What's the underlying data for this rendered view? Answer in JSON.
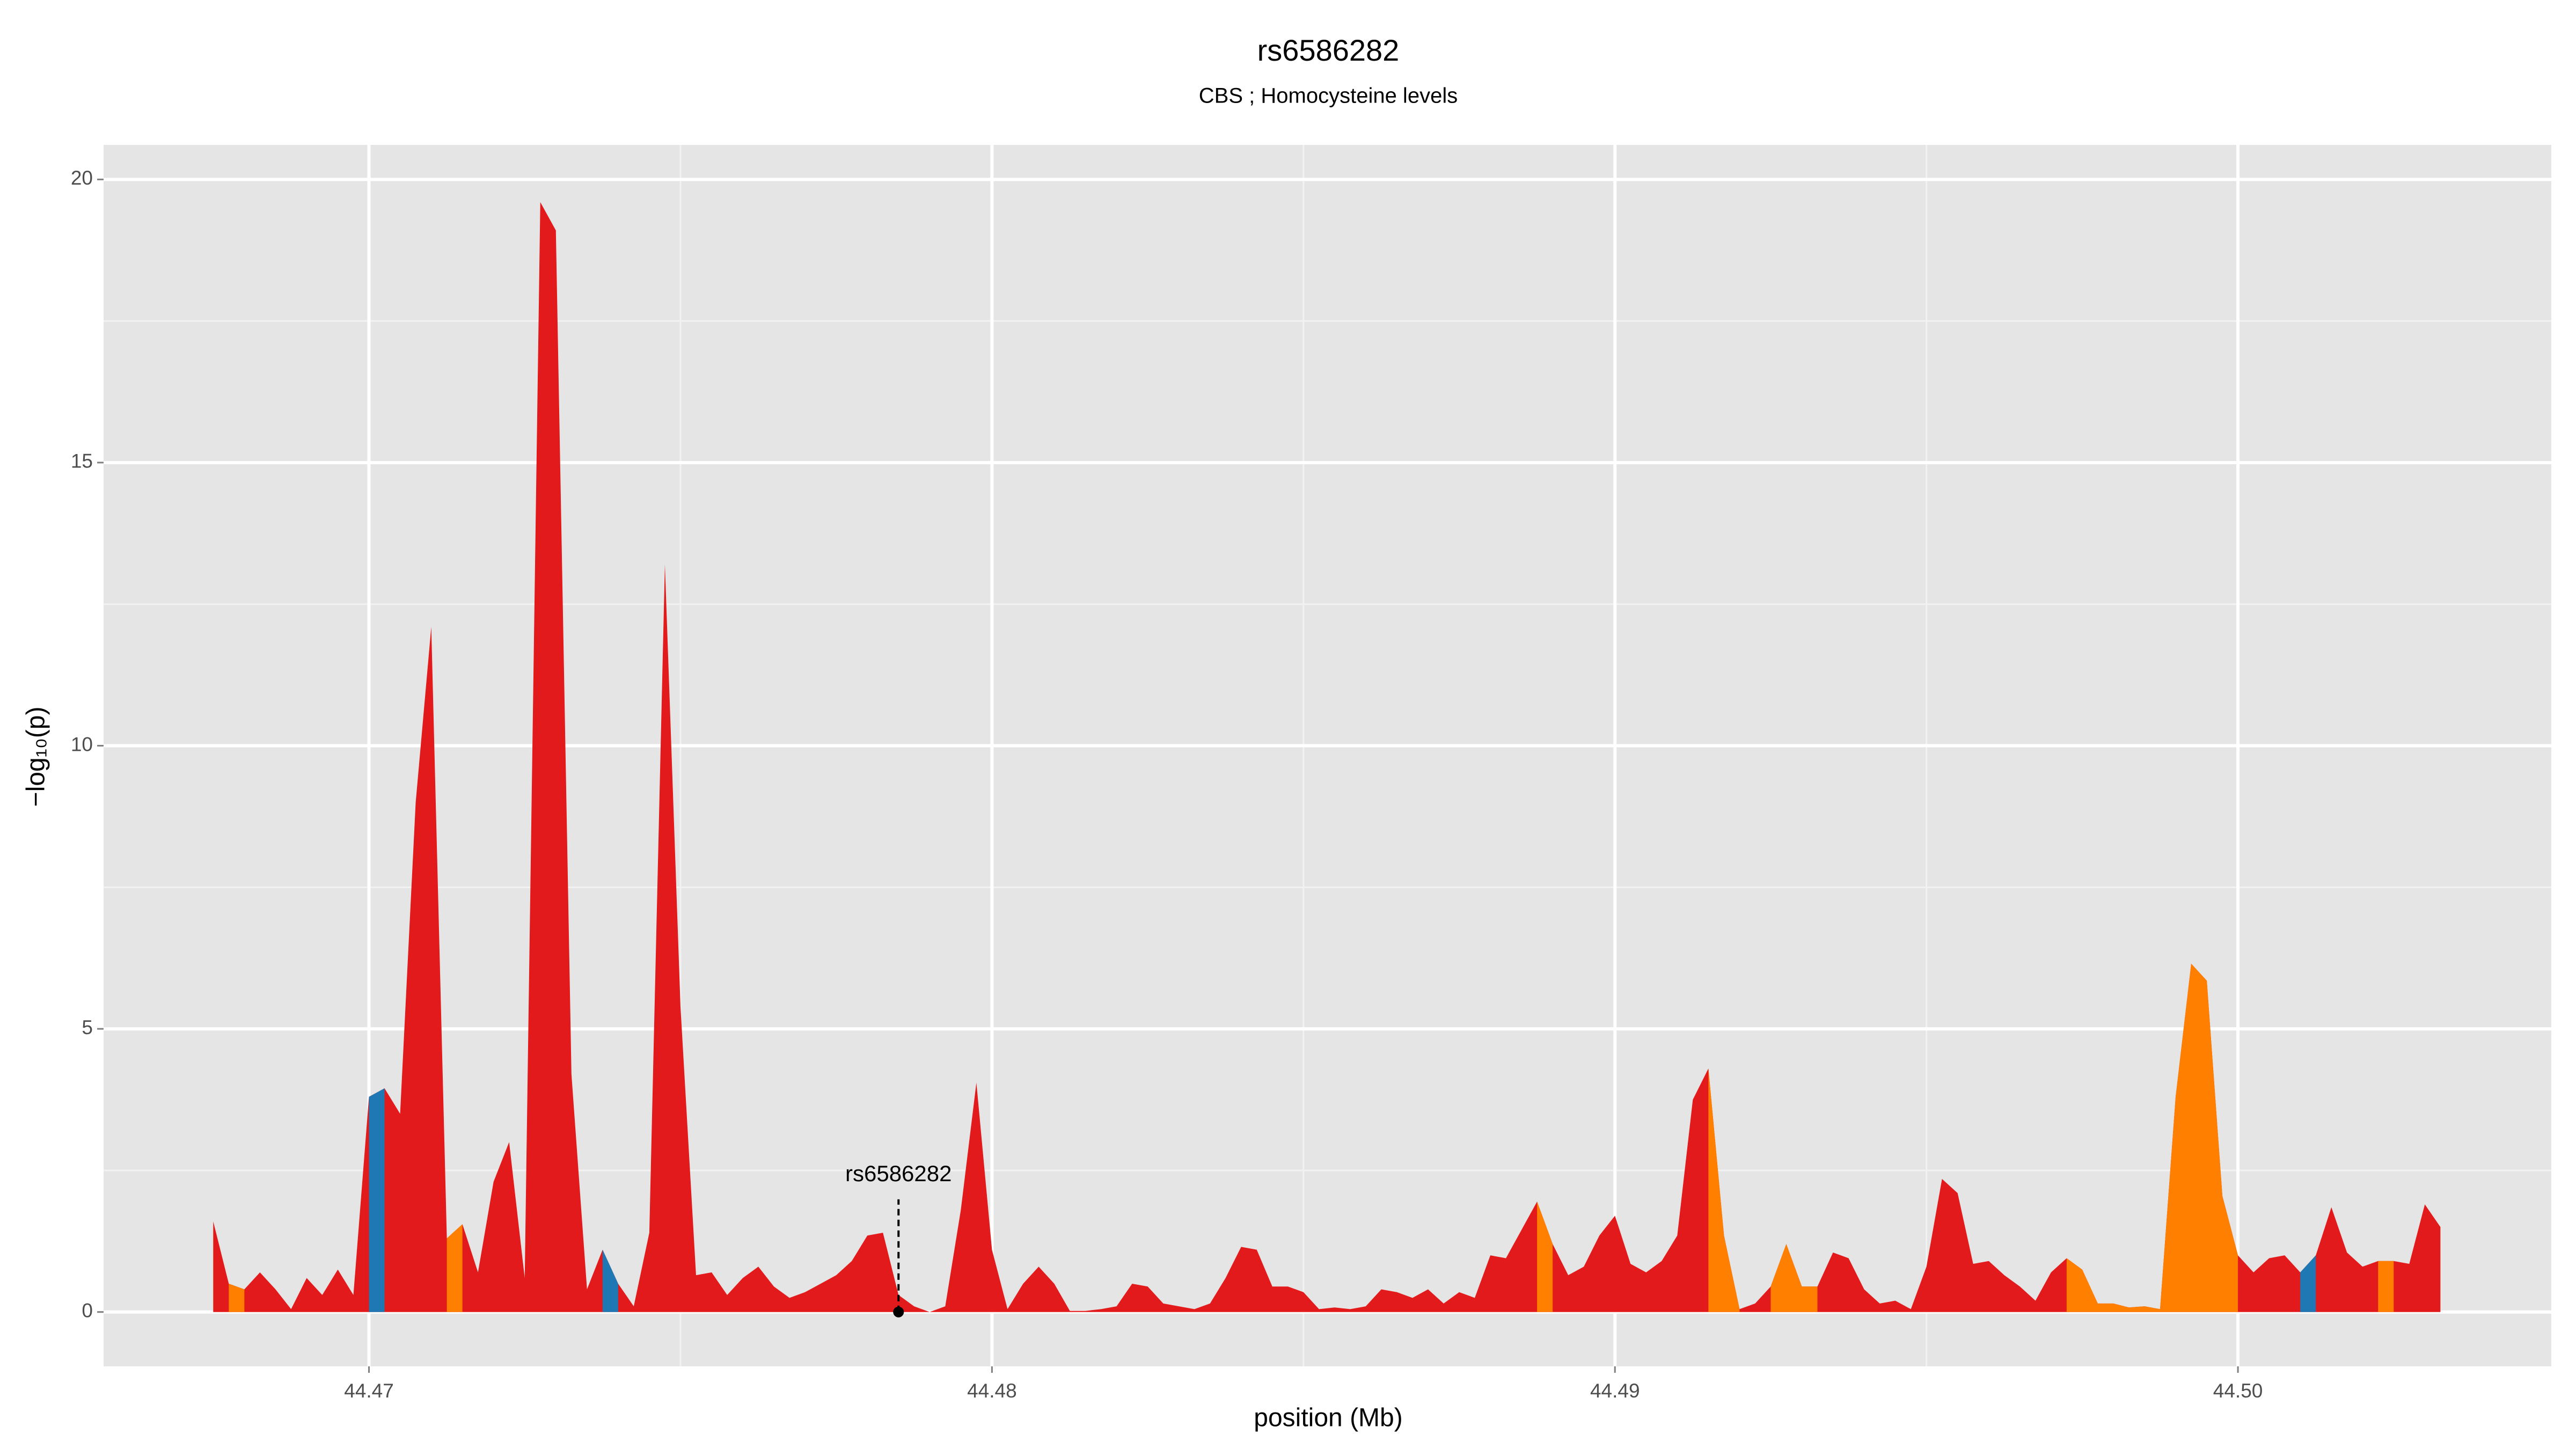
{
  "chart_data": {
    "type": "area",
    "title": "rs6586282",
    "subtitle": "CBS ; Homocysteine levels",
    "xlabel": "position (Mb)",
    "ylabel": "−log₁₀(p)",
    "xlim": [
      44.46574,
      44.50503
    ],
    "ylim": [
      -0.96,
      20.61
    ],
    "xticks": [
      44.47,
      44.48,
      44.49,
      {
        "value": 44.5,
        "label": "44.50"
      }
    ],
    "yticks": [
      0,
      5,
      10,
      15,
      20
    ],
    "grid": true,
    "x": [
      44.4675,
      44.46775,
      44.468,
      44.46825,
      44.4685,
      44.46875,
      44.469,
      44.46925,
      44.4695,
      44.46975,
      44.47,
      44.47025,
      44.4705,
      44.47075,
      44.471,
      44.47125,
      44.4715,
      44.47175,
      44.472,
      44.47225,
      44.4725,
      44.47275,
      44.473,
      44.47325,
      44.4735,
      44.47375,
      44.474,
      44.47425,
      44.4745,
      44.47475,
      44.475,
      44.47525,
      44.4755,
      44.47575,
      44.476,
      44.47625,
      44.4765,
      44.47675,
      44.477,
      44.47725,
      44.4775,
      44.47775,
      44.478,
      44.47825,
      44.4785,
      44.47875,
      44.479,
      44.47925,
      44.4795,
      44.47975,
      44.48,
      44.48025,
      44.4805,
      44.48075,
      44.481,
      44.48125,
      44.4815,
      44.48175,
      44.482,
      44.48225,
      44.4825,
      44.48275,
      44.483,
      44.48325,
      44.4835,
      44.48375,
      44.484,
      44.48425,
      44.4845,
      44.48475,
      44.485,
      44.48525,
      44.4855,
      44.48575,
      44.486,
      44.48625,
      44.4865,
      44.48675,
      44.487,
      44.48725,
      44.4875,
      44.48775,
      44.488,
      44.48825,
      44.4885,
      44.48875,
      44.489,
      44.48925,
      44.4895,
      44.48975,
      44.49,
      44.49025,
      44.4905,
      44.49075,
      44.491,
      44.49125,
      44.4915,
      44.49175,
      44.492,
      44.49225,
      44.4925,
      44.49275,
      44.493,
      44.49325,
      44.4935,
      44.49375,
      44.494,
      44.49425,
      44.4945,
      44.49475,
      44.495,
      44.49525,
      44.4955,
      44.49575,
      44.496,
      44.49625,
      44.4965,
      44.49675,
      44.497,
      44.49725,
      44.4975,
      44.49775,
      44.498,
      44.49825,
      44.4985,
      44.49875,
      44.499,
      44.49925,
      44.4995,
      44.49975,
      44.5,
      44.50025,
      44.5005,
      44.50075,
      44.501,
      44.50125,
      44.5015,
      44.50175,
      44.502,
      44.50225,
      44.5025,
      44.50275,
      44.503,
      44.50325
    ],
    "series": [
      {
        "color": "#e31a1c",
        "values": [
          1.6,
          0.5,
          0.4,
          0.7,
          0.4,
          0.05,
          0.6,
          0.3,
          0.75,
          0.3,
          3.8,
          3.95,
          3.5,
          9.0,
          12.1,
          1.3,
          1.55,
          0.7,
          2.3,
          3.0,
          0.6,
          19.6,
          19.1,
          4.2,
          0.4,
          1.1,
          0.5,
          0.1,
          1.4,
          13.2,
          5.4,
          0.65,
          0.7,
          0.3,
          0.6,
          0.8,
          0.45,
          0.25,
          0.35,
          0.5,
          0.65,
          0.9,
          1.35,
          1.4,
          0.3,
          0.1,
          0,
          0.1,
          1.8,
          4.05,
          1.1,
          0.05,
          0.5,
          0.8,
          0.5,
          0.02,
          0.02,
          0.05,
          0.1,
          0.5,
          0.45,
          0.15,
          0.1,
          0.05,
          0.15,
          0.6,
          1.15,
          1.1,
          0.45,
          0.45,
          0.35,
          0.05,
          0.08,
          0.05,
          0.1,
          0.4,
          0.35,
          0.25,
          0.4,
          0.15,
          0.35,
          0.25,
          1.0,
          0.95,
          1.45,
          1.95,
          1.2,
          0.65,
          0.8,
          1.35,
          1.7,
          0.85,
          0.7,
          0.9,
          1.35,
          3.75,
          4.3,
          1.35,
          0.05,
          0.15,
          0.45,
          1.2,
          0.45,
          0.45,
          1.05,
          0.95,
          0.4,
          0.15,
          0.2,
          0.05,
          0.8,
          2.35,
          2.1,
          0.85,
          0.9,
          0.65,
          0.45,
          0.2,
          0.7,
          0.95,
          0.75,
          0.15,
          0.15,
          0.08,
          0.1,
          0.05,
          3.8,
          6.15,
          5.85,
          2.05,
          1.0,
          0.7,
          0.95,
          1.0,
          0.7,
          1.0,
          1.85,
          1.05,
          0.8,
          0.9,
          0.9,
          0.85,
          1.9,
          1.5
        ]
      },
      {
        "color": "#ff7f00",
        "values": [
          null,
          0.5,
          0.4,
          null,
          null,
          null,
          null,
          null,
          null,
          null,
          null,
          null,
          null,
          null,
          null,
          1.3,
          1.55,
          null,
          null,
          null,
          null,
          null,
          null,
          null,
          null,
          null,
          null,
          null,
          null,
          null,
          null,
          null,
          null,
          null,
          null,
          null,
          null,
          null,
          null,
          null,
          null,
          null,
          null,
          null,
          null,
          null,
          null,
          null,
          null,
          null,
          null,
          null,
          null,
          null,
          null,
          null,
          null,
          null,
          null,
          null,
          null,
          null,
          null,
          null,
          null,
          null,
          null,
          null,
          null,
          null,
          null,
          null,
          null,
          null,
          null,
          null,
          null,
          null,
          null,
          null,
          null,
          null,
          null,
          null,
          null,
          1.95,
          1.2,
          null,
          null,
          null,
          null,
          null,
          null,
          null,
          null,
          null,
          4.3,
          1.35,
          0.05,
          null,
          0.45,
          1.2,
          0.45,
          0.45,
          null,
          null,
          null,
          null,
          null,
          null,
          null,
          null,
          null,
          null,
          null,
          null,
          null,
          null,
          null,
          0.95,
          0.75,
          0.15,
          0.15,
          0.08,
          0.1,
          0.05,
          3.8,
          6.15,
          5.85,
          2.05,
          1.0,
          null,
          null,
          null,
          null,
          null,
          null,
          null,
          null,
          0.9,
          0.9,
          null,
          null,
          null
        ]
      },
      {
        "color": "#1f78b4",
        "values": [
          null,
          null,
          null,
          null,
          null,
          null,
          null,
          null,
          null,
          null,
          3.8,
          3.95,
          null,
          null,
          null,
          null,
          null,
          null,
          null,
          null,
          null,
          null,
          null,
          null,
          null,
          1.1,
          0.5,
          null,
          null,
          null,
          null,
          null,
          null,
          null,
          null,
          null,
          null,
          null,
          null,
          null,
          null,
          null,
          null,
          null,
          null,
          null,
          null,
          null,
          null,
          null,
          null,
          null,
          null,
          null,
          null,
          null,
          null,
          null,
          null,
          null,
          null,
          null,
          null,
          null,
          null,
          null,
          null,
          null,
          null,
          null,
          null,
          null,
          null,
          null,
          null,
          null,
          null,
          null,
          null,
          null,
          null,
          null,
          null,
          null,
          null,
          null,
          null,
          null,
          null,
          null,
          null,
          null,
          null,
          null,
          null,
          null,
          null,
          null,
          null,
          null,
          null,
          null,
          null,
          null,
          null,
          null,
          null,
          null,
          null,
          null,
          null,
          null,
          null,
          null,
          null,
          null,
          null,
          null,
          null,
          null,
          null,
          null,
          null,
          null,
          null,
          null,
          null,
          null,
          null,
          null,
          null,
          null,
          null,
          null,
          0.7,
          1.0,
          null,
          null,
          null,
          null,
          null,
          null,
          null,
          null
        ]
      }
    ],
    "annotation": {
      "text": "rs6586282",
      "x": 44.4785,
      "y": 0
    }
  }
}
